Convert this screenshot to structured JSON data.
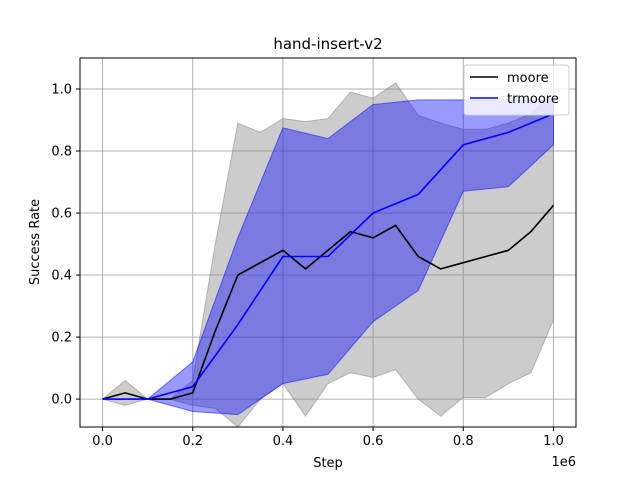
{
  "chart_data": {
    "type": "line",
    "title": "hand-insert-v2",
    "xlabel": "Step",
    "ylabel": "Success Rate",
    "x_offset_label": "1e6",
    "xlim": [
      -0.05,
      1.05
    ],
    "ylim": [
      -0.09,
      1.1
    ],
    "xticks": [
      0.0,
      0.2,
      0.4,
      0.6,
      0.8,
      1.0
    ],
    "xtick_labels": [
      "0.0",
      "0.2",
      "0.4",
      "0.6",
      "0.8",
      "1.0"
    ],
    "yticks": [
      0.0,
      0.2,
      0.4,
      0.6,
      0.8,
      1.0
    ],
    "ytick_labels": [
      "0.0",
      "0.2",
      "0.4",
      "0.6",
      "0.8",
      "1.0"
    ],
    "grid": true,
    "legend_position": "top-right",
    "series": [
      {
        "name": "moore",
        "color": "#000000",
        "band_color": "#808080",
        "x": [
          0.0,
          0.05,
          0.1,
          0.15,
          0.2,
          0.25,
          0.3,
          0.35,
          0.4,
          0.45,
          0.5,
          0.55,
          0.6,
          0.65,
          0.7,
          0.75,
          0.8,
          0.85,
          0.9,
          0.95,
          1.0
        ],
        "y": [
          0.0,
          0.02,
          0.0,
          0.0,
          0.02,
          0.22,
          0.4,
          0.44,
          0.48,
          0.42,
          0.48,
          0.54,
          0.52,
          0.56,
          0.46,
          0.42,
          0.44,
          0.46,
          0.48,
          0.54,
          0.625
        ],
        "upper": [
          0.0,
          0.06,
          0.0,
          0.0,
          0.06,
          0.5,
          0.89,
          0.86,
          0.905,
          0.895,
          0.905,
          0.99,
          0.97,
          1.02,
          0.915,
          0.89,
          0.87,
          0.87,
          0.89,
          0.92,
          0.99
        ],
        "lower": [
          0.0,
          -0.02,
          0.0,
          0.0,
          -0.02,
          -0.03,
          -0.09,
          0.0,
          0.05,
          -0.055,
          0.05,
          0.085,
          0.07,
          0.095,
          0.0,
          -0.055,
          0.005,
          0.005,
          0.05,
          0.085,
          0.255
        ]
      },
      {
        "name": "trmoore",
        "color": "#0000ff",
        "band_color": "#0000ff",
        "x": [
          0.0,
          0.1,
          0.2,
          0.3,
          0.4,
          0.5,
          0.6,
          0.7,
          0.8,
          0.9,
          1.0
        ],
        "y": [
          0.0,
          0.0,
          0.04,
          0.24,
          0.46,
          0.46,
          0.6,
          0.66,
          0.82,
          0.86,
          0.92
        ],
        "upper": [
          0.0,
          0.0,
          0.12,
          0.52,
          0.875,
          0.84,
          0.95,
          0.965,
          0.965,
          0.965,
          0.965
        ],
        "lower": [
          0.0,
          0.0,
          -0.04,
          -0.05,
          0.05,
          0.08,
          0.25,
          0.35,
          0.67,
          0.685,
          0.82
        ]
      }
    ]
  }
}
